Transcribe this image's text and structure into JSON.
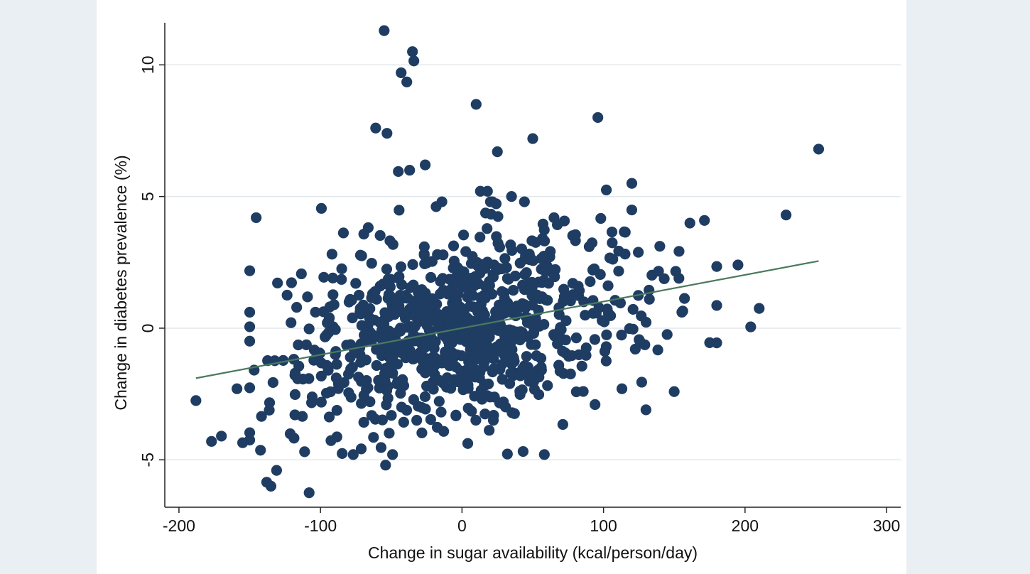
{
  "chart_data": {
    "type": "scatter",
    "title": "",
    "xlabel": "Change in sugar availability (kcal/person/day)",
    "ylabel": "Change in diabetes prevalence (%)",
    "xlim": [
      -210,
      310
    ],
    "ylim": [
      -6.8,
      11.6
    ],
    "xticks": [
      -200,
      -100,
      0,
      100,
      200,
      300
    ],
    "xtick_labels": [
      "-200",
      "-100",
      "0",
      "100",
      "200",
      "300"
    ],
    "yticks": [
      -5,
      0,
      5,
      10
    ],
    "ytick_labels": [
      "-5",
      "0",
      "5",
      "10"
    ],
    "grid": "horizontal",
    "legend": "none",
    "colors": {
      "marker": "#1f3d63",
      "fit_line": "#4a7a5e",
      "grid": "#e3e8ec",
      "axis": "#222222",
      "plot_background": "#ffffff",
      "page_background": "#eaeff3"
    },
    "fit_line": {
      "x": [
        -188,
        252
      ],
      "y": [
        -1.9,
        2.55
      ]
    },
    "outliers": {
      "x": [
        -55,
        -35,
        -34,
        -43,
        -39,
        10,
        96,
        25,
        50,
        252,
        -61,
        -53,
        -45,
        -37,
        -26,
        13,
        18,
        35,
        102,
        120,
        229,
        -188,
        -177,
        -170,
        -155,
        -138,
        -135,
        -131,
        -108,
        -54,
        -159,
        175,
        204,
        210,
        156,
        195,
        113,
        94,
        130,
        127
      ],
      "y": [
        11.3,
        10.5,
        10.15,
        9.7,
        9.35,
        8.5,
        8.0,
        6.7,
        7.2,
        6.8,
        7.6,
        7.4,
        5.95,
        6.0,
        6.2,
        5.2,
        5.2,
        5.0,
        5.25,
        5.5,
        4.3,
        -2.75,
        -4.3,
        -4.1,
        -4.35,
        -5.85,
        -6.0,
        -5.4,
        -6.25,
        -5.2,
        -2.3,
        -0.55,
        0.05,
        0.75,
        0.65,
        2.4,
        -2.3,
        -2.9,
        -3.1,
        -2.05
      ]
    },
    "cloud": {
      "n": 900,
      "x_center": 0,
      "x_sd": 62,
      "x_range": [
        -150,
        180
      ],
      "slope_per_kcal": 0.0101,
      "residual_sd": 1.75,
      "y_range": [
        -4.8,
        4.8
      ]
    }
  }
}
